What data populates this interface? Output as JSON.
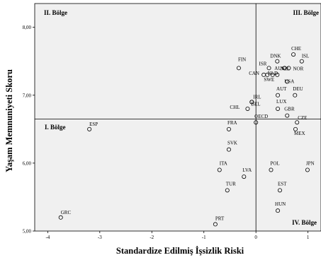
{
  "chart_data": {
    "type": "scatter",
    "xlabel": "Standardize Edilmiş İşsizlik Riski",
    "ylabel": "Yaşam Memnuniyeti Skoru",
    "xlim": [
      -4.25,
      1.25
    ],
    "ylim": [
      5.0,
      8.35
    ],
    "x_ticks": [
      -4,
      -3,
      -2,
      -1,
      0,
      1
    ],
    "x_tick_labels": [
      "-4",
      "-3",
      "-2",
      "-1",
      "0",
      "1"
    ],
    "y_ticks": [
      5,
      6,
      7,
      8
    ],
    "y_tick_labels": [
      "5,00",
      "6,00",
      "7,00",
      "8,00"
    ],
    "reference_lines": {
      "x": 0,
      "y": 6.65
    },
    "quadrant_labels": {
      "q1": "I. Bölge",
      "q2": "II. Bölge",
      "q3": "III. Bölge",
      "q4": "IV. Bölge"
    },
    "points": [
      {
        "label": "CHE",
        "x": 0.72,
        "y": 7.6
      },
      {
        "label": "DNK",
        "x": 0.41,
        "y": 7.5
      },
      {
        "label": "ISL",
        "x": 0.88,
        "y": 7.5
      },
      {
        "label": "NZL",
        "x": 0.55,
        "y": 7.4
      },
      {
        "label": "NOR",
        "x": 0.63,
        "y": 7.4
      },
      {
        "label": "ISR",
        "x": 0.25,
        "y": 7.4
      },
      {
        "label": "FIN",
        "x": -0.33,
        "y": 7.4
      },
      {
        "label": "CAN",
        "x": 0.15,
        "y": 7.3
      },
      {
        "label": "NLD",
        "x": 0.32,
        "y": 7.3
      },
      {
        "label": "SWE",
        "x": 0.22,
        "y": 7.3
      },
      {
        "label": "AUS",
        "x": 0.41,
        "y": 7.3
      },
      {
        "label": "USA",
        "x": 0.6,
        "y": 7.2
      },
      {
        "label": "AUT",
        "x": 0.42,
        "y": 7.0
      },
      {
        "label": "DEU",
        "x": 0.75,
        "y": 7.0
      },
      {
        "label": "IRL",
        "x": -0.08,
        "y": 6.9
      },
      {
        "label": "LUX",
        "x": 0.42,
        "y": 6.8
      },
      {
        "label": "BEL",
        "x": -0.08,
        "y": 6.9
      },
      {
        "label": "CHL",
        "x": -0.16,
        "y": 6.8
      },
      {
        "label": "GBR",
        "x": 0.6,
        "y": 6.7
      },
      {
        "label": "OECD",
        "x": 0.0,
        "y": 6.6
      },
      {
        "label": "CZE",
        "x": 0.79,
        "y": 6.6
      },
      {
        "label": "ESP",
        "x": -3.2,
        "y": 6.5
      },
      {
        "label": "FRA",
        "x": -0.52,
        "y": 6.5
      },
      {
        "label": "MEX",
        "x": 0.76,
        "y": 6.5
      },
      {
        "label": "SVK",
        "x": -0.52,
        "y": 6.2
      },
      {
        "label": "ITA",
        "x": -0.7,
        "y": 5.9
      },
      {
        "label": "POL",
        "x": 0.29,
        "y": 5.9
      },
      {
        "label": "JPN",
        "x": 0.99,
        "y": 5.9
      },
      {
        "label": "LVA",
        "x": -0.23,
        "y": 5.8
      },
      {
        "label": "TUR",
        "x": -0.55,
        "y": 5.6
      },
      {
        "label": "EST",
        "x": 0.46,
        "y": 5.6
      },
      {
        "label": "HUN",
        "x": 0.42,
        "y": 5.3
      },
      {
        "label": "GRC",
        "x": -3.75,
        "y": 5.2
      },
      {
        "label": "PRT",
        "x": -0.78,
        "y": 5.1
      }
    ]
  }
}
